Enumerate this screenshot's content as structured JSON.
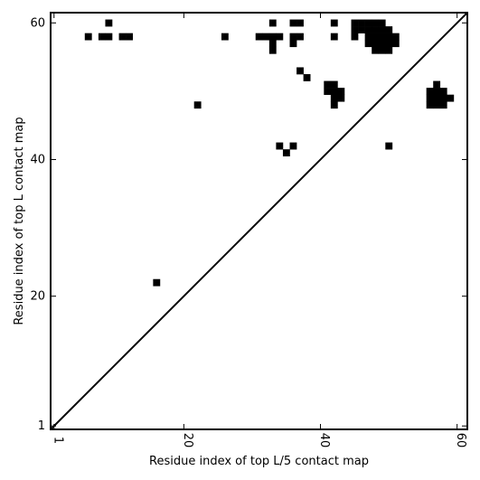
{
  "chart_data": {
    "type": "heatmap",
    "title": "",
    "xlabel": "Residue index of top L/5 contact map",
    "ylabel": "Residue index of top L contact map",
    "xlim": [
      0.5,
      61.5
    ],
    "ylim": [
      0.5,
      61.5
    ],
    "xticks": [
      1,
      20,
      40,
      60
    ],
    "yticks": [
      1,
      20,
      40,
      60
    ],
    "diagonal": [
      [
        0.5,
        0.5
      ],
      [
        61.5,
        61.5
      ]
    ],
    "cell_color": "#000000",
    "background": "#ffffff",
    "cells": [
      [
        6,
        58
      ],
      [
        8,
        58
      ],
      [
        9,
        58
      ],
      [
        9,
        60
      ],
      [
        11,
        58
      ],
      [
        12,
        58
      ],
      [
        16,
        22
      ],
      [
        22,
        48
      ],
      [
        26,
        58
      ],
      [
        31,
        58
      ],
      [
        32,
        58
      ],
      [
        33,
        56
      ],
      [
        33,
        57
      ],
      [
        33,
        58
      ],
      [
        33,
        60
      ],
      [
        34,
        58
      ],
      [
        34,
        42
      ],
      [
        35,
        41
      ],
      [
        36,
        57
      ],
      [
        36,
        58
      ],
      [
        36,
        60
      ],
      [
        36,
        42
      ],
      [
        37,
        58
      ],
      [
        37,
        60
      ],
      [
        37,
        53
      ],
      [
        38,
        52
      ],
      [
        41,
        50
      ],
      [
        41,
        51
      ],
      [
        42,
        48
      ],
      [
        42,
        49
      ],
      [
        42,
        50
      ],
      [
        42,
        51
      ],
      [
        42,
        58
      ],
      [
        42,
        60
      ],
      [
        43,
        49
      ],
      [
        43,
        50
      ],
      [
        45,
        58
      ],
      [
        45,
        59
      ],
      [
        45,
        60
      ],
      [
        46,
        59
      ],
      [
        46,
        60
      ],
      [
        47,
        57
      ],
      [
        47,
        58
      ],
      [
        47,
        59
      ],
      [
        47,
        60
      ],
      [
        48,
        56
      ],
      [
        48,
        57
      ],
      [
        48,
        58
      ],
      [
        48,
        59
      ],
      [
        48,
        60
      ],
      [
        49,
        56
      ],
      [
        49,
        57
      ],
      [
        49,
        58
      ],
      [
        49,
        59
      ],
      [
        49,
        60
      ],
      [
        50,
        56
      ],
      [
        50,
        57
      ],
      [
        50,
        58
      ],
      [
        50,
        59
      ],
      [
        50,
        42
      ],
      [
        51,
        57
      ],
      [
        51,
        58
      ],
      [
        56,
        48
      ],
      [
        56,
        49
      ],
      [
        56,
        50
      ],
      [
        57,
        48
      ],
      [
        57,
        49
      ],
      [
        57,
        50
      ],
      [
        57,
        51
      ],
      [
        58,
        48
      ],
      [
        58,
        49
      ],
      [
        58,
        50
      ],
      [
        59,
        49
      ]
    ]
  }
}
